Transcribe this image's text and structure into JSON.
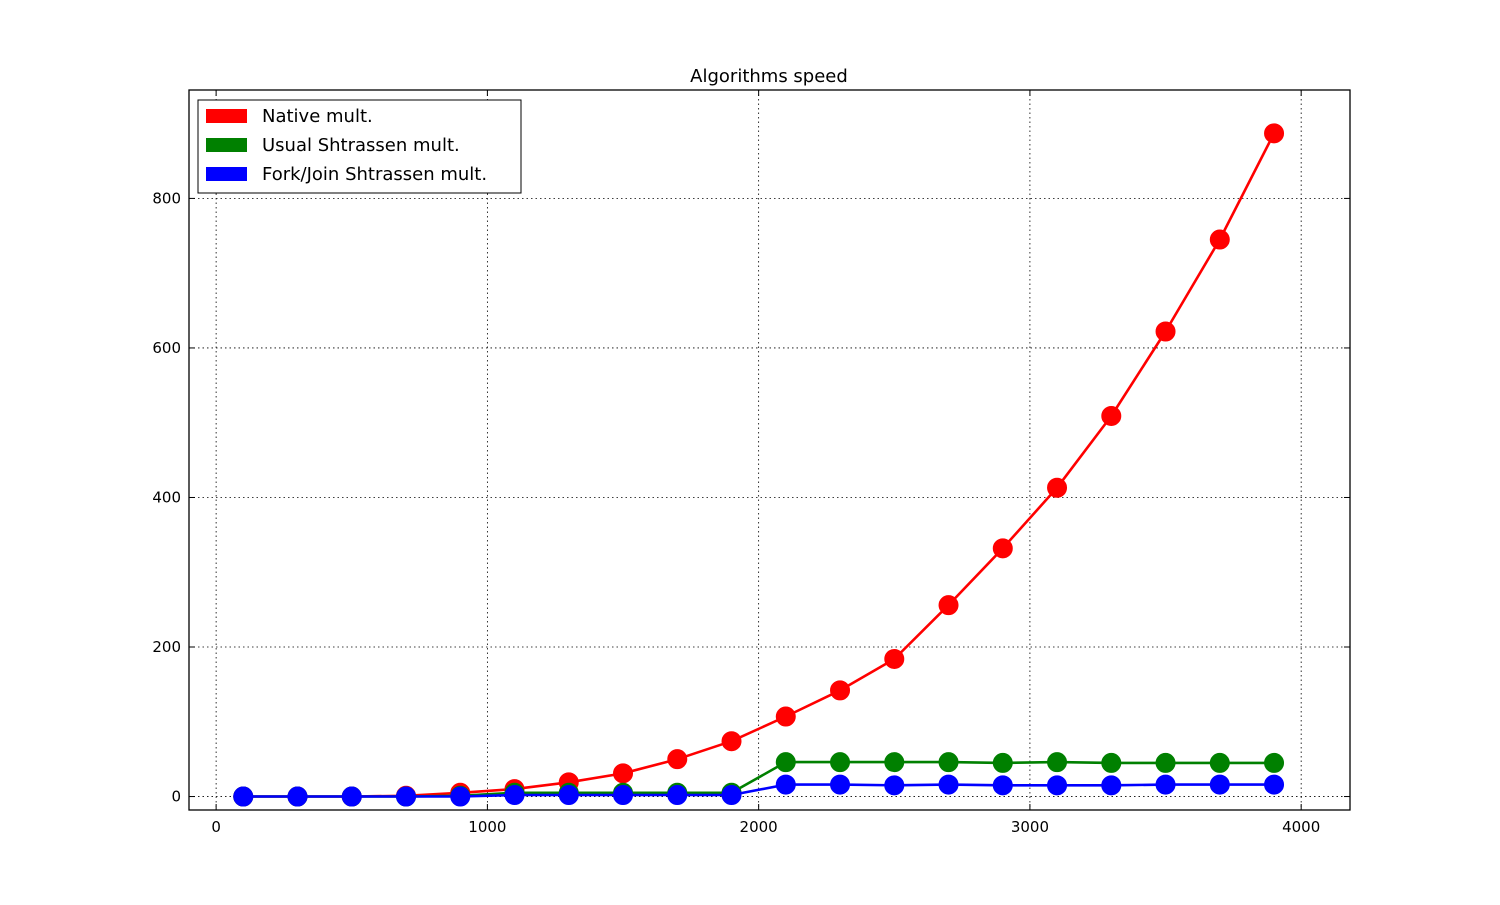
{
  "chart_data": {
    "type": "line",
    "title": "Algorithms speed",
    "xlabel": "",
    "ylabel": "",
    "xlim": [
      -100,
      4180
    ],
    "ylim": [
      -18,
      945
    ],
    "xticks": [
      0,
      1000,
      2000,
      3000,
      4000
    ],
    "yticks": [
      0,
      200,
      400,
      600,
      800
    ],
    "grid": true,
    "legend_position": "top-left",
    "x": [
      100,
      300,
      500,
      700,
      900,
      1100,
      1300,
      1500,
      1700,
      1900,
      2100,
      2300,
      2500,
      2700,
      2900,
      3100,
      3300,
      3500,
      3700,
      3900
    ],
    "series": [
      {
        "name": "Native mult.",
        "color": "#ff0000",
        "values": [
          0,
          0,
          0,
          1,
          5,
          10,
          19,
          31,
          50,
          74,
          107,
          142,
          184,
          256,
          332,
          413,
          509,
          622,
          745,
          887
        ]
      },
      {
        "name": "Usual Shtrassen mult.",
        "color": "#008000",
        "values": [
          0,
          0,
          0,
          0,
          1,
          5,
          5,
          5,
          5,
          5,
          46,
          46,
          46,
          46,
          45,
          46,
          45,
          45,
          45,
          45
        ]
      },
      {
        "name": "Fork/Join Shtrassen mult.",
        "color": "#0000ff",
        "values": [
          0,
          0,
          0,
          0,
          0,
          2,
          2,
          2,
          2,
          2,
          16,
          16,
          15,
          16,
          15,
          15,
          15,
          16,
          16,
          16
        ]
      }
    ]
  }
}
